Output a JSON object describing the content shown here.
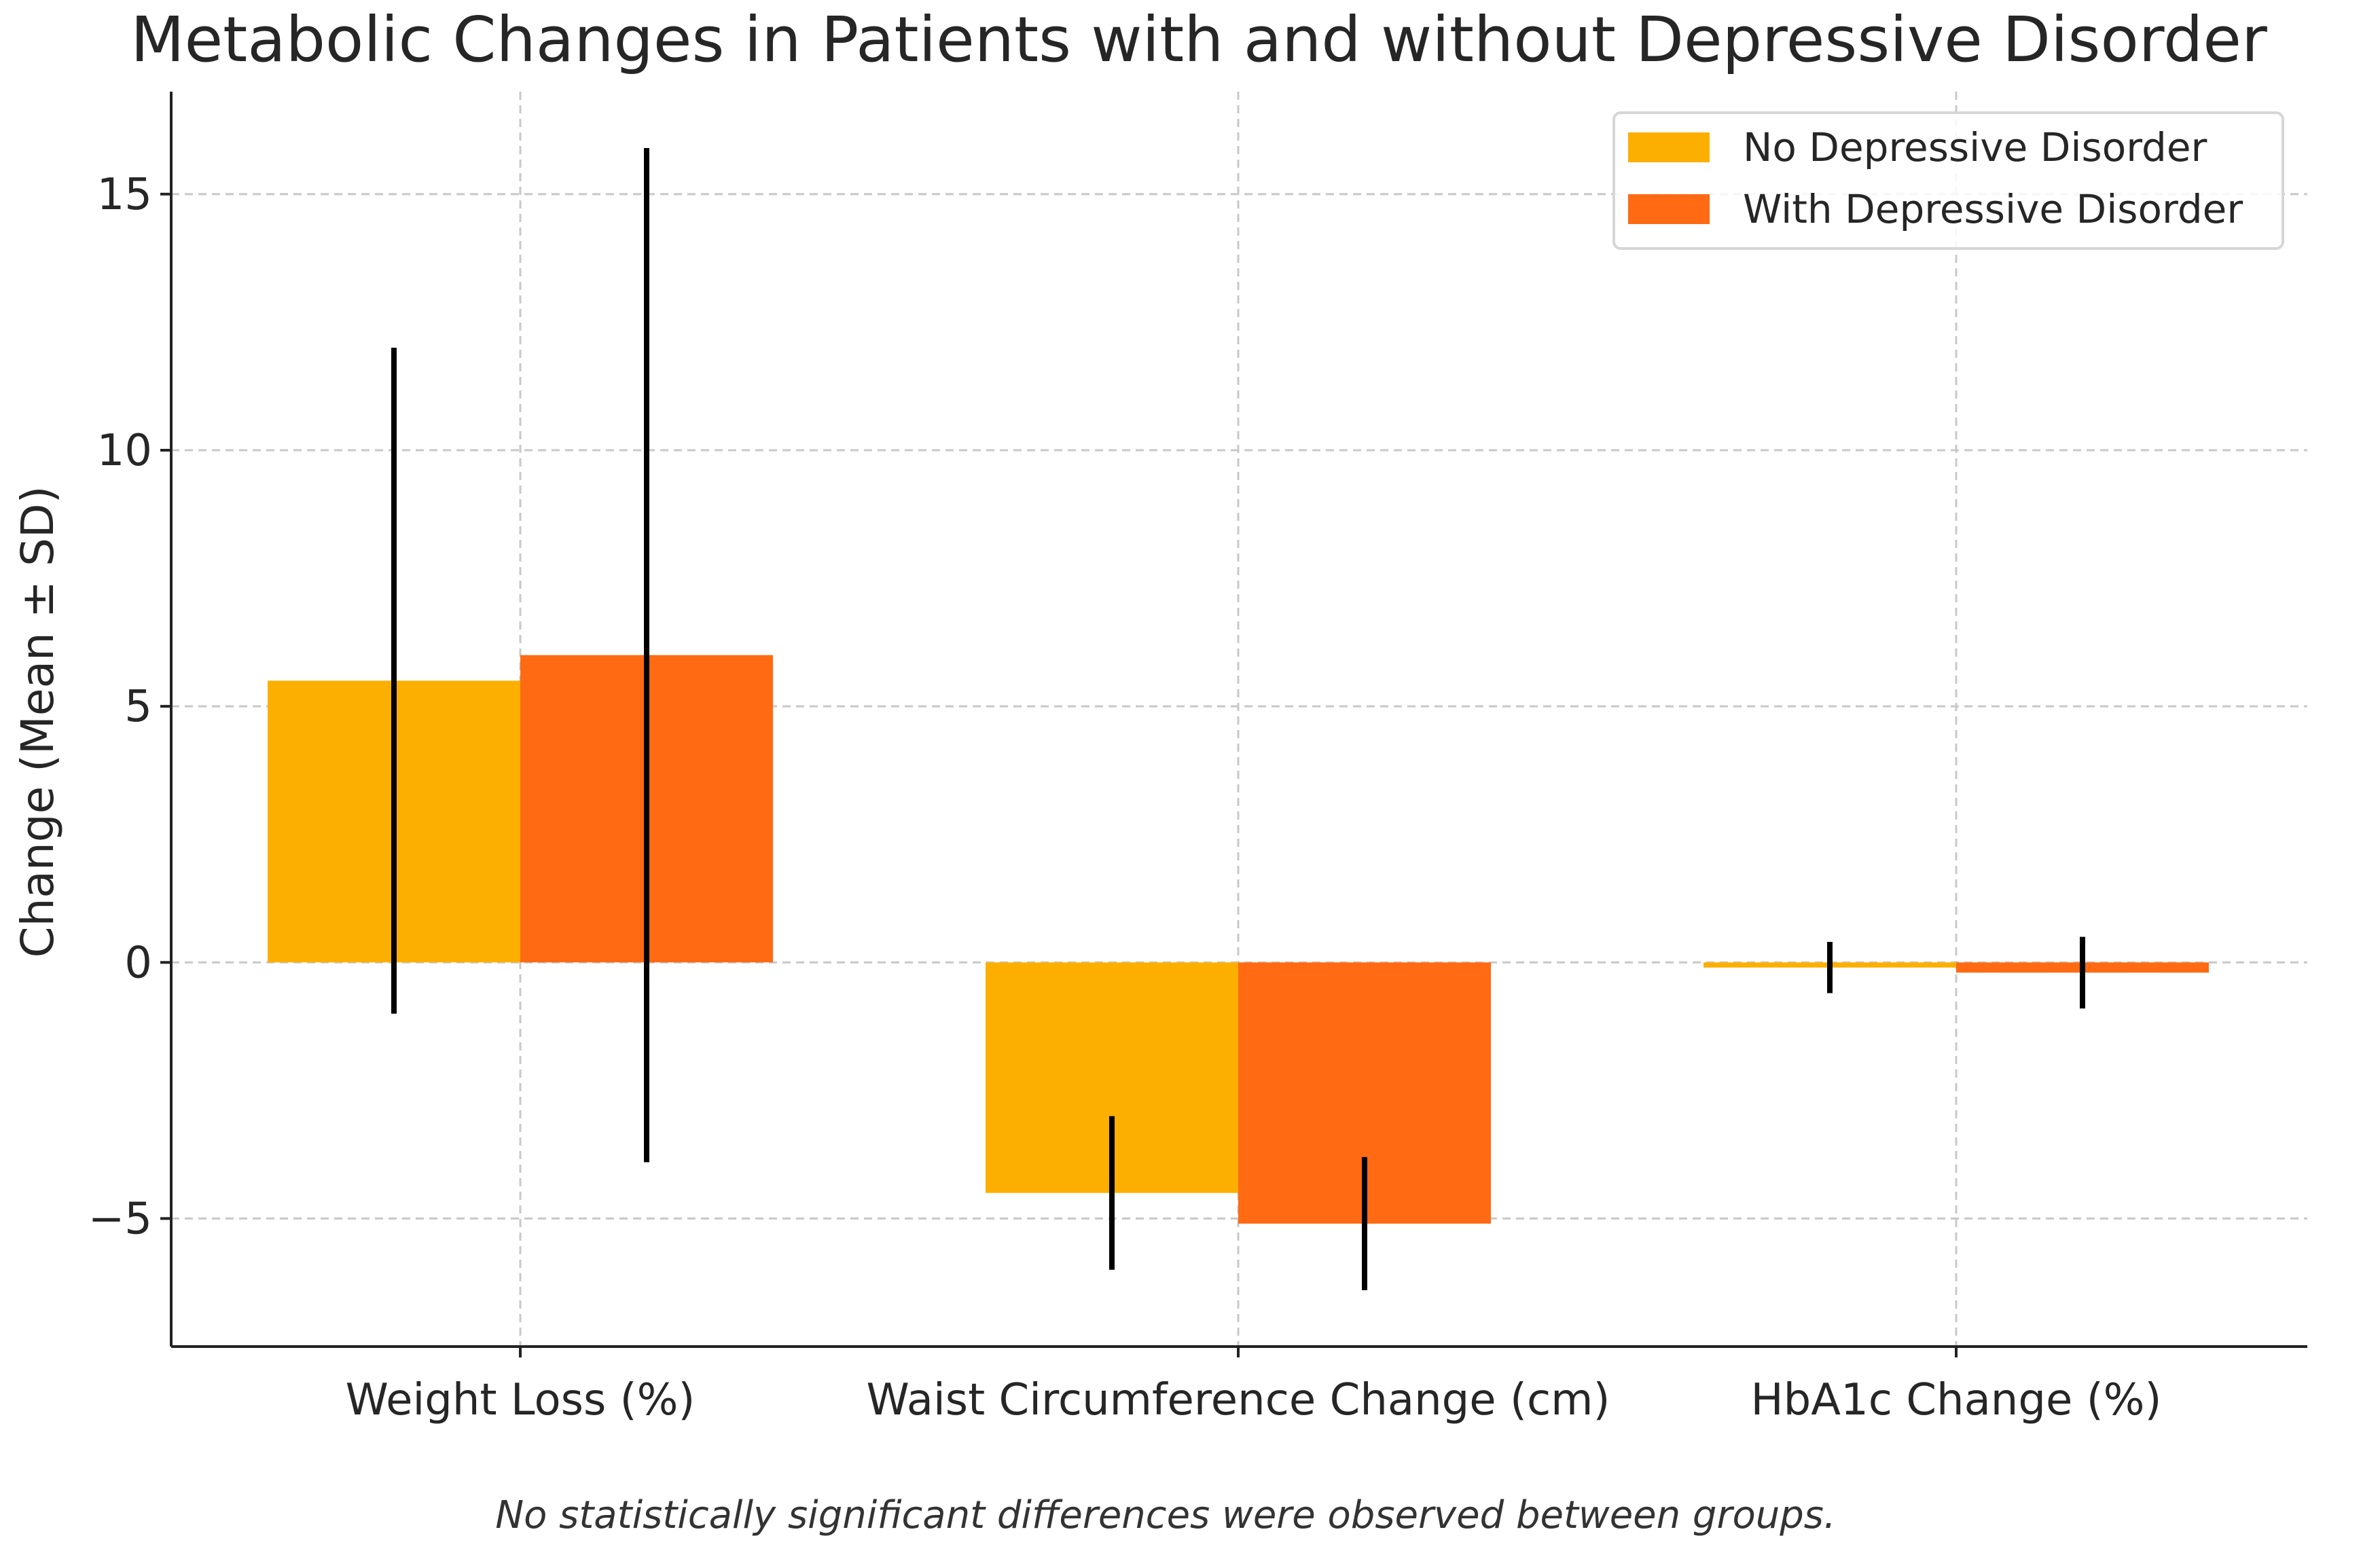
{
  "chart_data": {
    "type": "bar",
    "title": "Metabolic Changes in Patients with and without Depressive Disorder",
    "xlabel": "",
    "ylabel": "Change (Mean ± SD)",
    "ylim": [
      -7.5,
      17
    ],
    "yticks": [
      -5,
      0,
      5,
      10,
      15
    ],
    "ytick_labels": [
      "−5",
      "0",
      "5",
      "10",
      "15"
    ],
    "categories": [
      "Weight Loss (%)",
      "Waist Circumference Change (cm)",
      "HbA1c Change (%)"
    ],
    "series": [
      {
        "name": "No Depressive Disorder",
        "color": "#FDAF00",
        "values": [
          5.5,
          -4.5,
          -0.1
        ],
        "errors": [
          6.5,
          1.5,
          0.5
        ]
      },
      {
        "name": "With Depressive Disorder",
        "color": "#FF6A13",
        "values": [
          6.0,
          -5.1,
          -0.2
        ],
        "errors": [
          9.9,
          1.3,
          0.7
        ]
      }
    ],
    "grid": true,
    "legend_position": "top-right",
    "footnote": "No statistically significant differences were observed between groups."
  }
}
